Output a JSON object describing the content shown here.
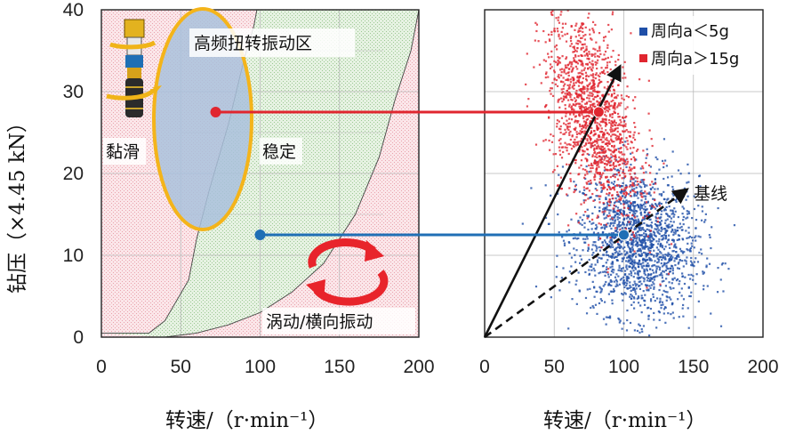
{
  "chart_data": [
    {
      "type": "area",
      "panel": "left",
      "xlabel": "转速/（r·min⁻¹）",
      "ylabel": "钻压（×4.45 kN）",
      "xlim": [
        0,
        200
      ],
      "ylim": [
        0,
        40
      ],
      "xticks": [
        "0",
        "50",
        "100",
        "150",
        "200"
      ],
      "yticks": [
        "0",
        "10",
        "20",
        "30",
        "40"
      ],
      "grid": true,
      "regions": [
        {
          "name": "黏滑",
          "color": "#f4c6cc"
        },
        {
          "name": "稳定",
          "color": "#cfe5c8"
        },
        {
          "name": "涡动/横向振动",
          "color": "#f4c6cc"
        },
        {
          "name": "高频扭转振动区",
          "color": "#a9c1dc",
          "border": "#f4b41a"
        }
      ],
      "boundaries": [
        {
          "x": [
            0,
            30,
            40,
            55,
            60,
            68,
            80,
            90,
            96,
            98
          ],
          "y": [
            0.5,
            0.5,
            2,
            7,
            12,
            18,
            26,
            34,
            38,
            40
          ]
        },
        {
          "x": [
            40,
            60,
            80,
            100,
            120,
            140,
            160,
            175,
            185,
            195,
            200
          ],
          "y": [
            0,
            0.5,
            1.5,
            3,
            5.5,
            9,
            15,
            22,
            29,
            35,
            40
          ]
        }
      ],
      "points": [
        {
          "x": 72,
          "y": 27.5,
          "color": "#e0262f"
        },
        {
          "x": 100,
          "y": 12.5,
          "color": "#1f6fb5"
        }
      ]
    },
    {
      "type": "scatter",
      "panel": "right",
      "xlabel": "转速/（r·min⁻¹）",
      "xlim": [
        0,
        200
      ],
      "ylim": [
        0,
        40
      ],
      "xticks": [
        "0",
        "50",
        "100",
        "150",
        "200"
      ],
      "grid": true,
      "legend_position": "top-right",
      "series": [
        {
          "name": "周向a＜5g",
          "color": "#1f4fa8",
          "center": [
            110,
            11.5
          ],
          "spread": [
            22,
            4.5
          ]
        },
        {
          "name": "周向a＞15g",
          "color": "#e0262f",
          "center": [
            78,
            27
          ],
          "spread": [
            17,
            5.5
          ]
        }
      ],
      "arrows": [
        {
          "label": "",
          "from": [
            0,
            0
          ],
          "to": [
            97,
            33
          ],
          "style": "solid"
        },
        {
          "label": "基线",
          "from": [
            0,
            0
          ],
          "to": [
            145,
            18
          ],
          "style": "dashed"
        }
      ],
      "points": [
        {
          "x": 82,
          "y": 27.5,
          "color": "#e0262f"
        },
        {
          "x": 100,
          "y": 12.5,
          "color": "#1f6fb5"
        }
      ]
    }
  ],
  "labels": {
    "left_title_zone": "高频扭转振动区",
    "stick_slip": "黏滑",
    "stable": "稳定",
    "whirl": "涡动/横向振动",
    "baseline": "基线",
    "legend_blue": "周向a＜5g",
    "legend_red": "周向a＞15g"
  },
  "colors": {
    "red_point": "#e0262f",
    "blue_point": "#1f6fb5",
    "ellipse_border": "#f4b41a",
    "rotate_icon": "#e8242b"
  },
  "icons": [
    "drill-bit-icon",
    "rotation-arrows-icon"
  ]
}
